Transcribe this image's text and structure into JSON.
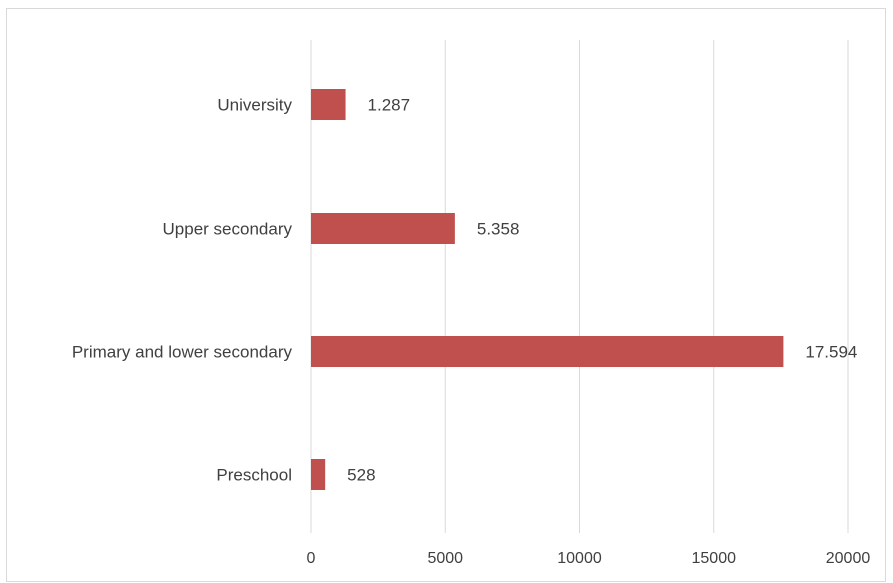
{
  "chart_data": {
    "type": "bar",
    "orientation": "horizontal",
    "categories": [
      "University",
      "Upper secondary",
      "Primary and lower secondary",
      "Preschool"
    ],
    "values": [
      1287,
      5358,
      17594,
      528
    ],
    "data_labels": [
      "1.287",
      "5.358",
      "17.594",
      "528"
    ],
    "xticks": [
      0,
      5000,
      10000,
      15000,
      20000
    ],
    "xtick_labels": [
      "0",
      "5000",
      "10000",
      "15000",
      "20000"
    ],
    "xlim": [
      0,
      20000
    ],
    "title": "",
    "xlabel": "",
    "ylabel": "",
    "grid": "vertical",
    "legend": "none",
    "bar_color": "#c0504d",
    "grid_color": "#d9d9d9",
    "text_color": "#404040"
  }
}
